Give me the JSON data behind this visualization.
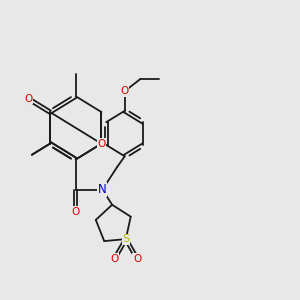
{
  "bg": "#e8e8e8",
  "bc": "#1a1a1a",
  "oc": "#dd0000",
  "nc": "#0000cc",
  "sc": "#b8b800",
  "lw": 1.3,
  "dlw": 1.3,
  "sep": 0.055,
  "fs": 7.5,
  "figsize": [
    3.0,
    3.0
  ],
  "dpi": 100,
  "xlim": [
    -0.5,
    9.5
  ],
  "ylim": [
    -0.2,
    9.2
  ]
}
